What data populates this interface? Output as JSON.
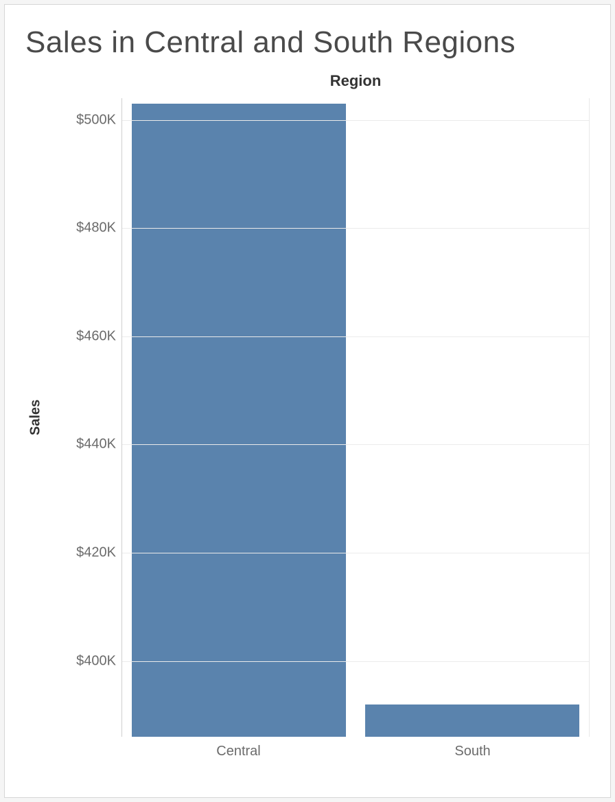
{
  "chart": {
    "type": "bar",
    "title": "Sales in Central and South Regions",
    "title_fontsize": 44,
    "title_color": "#4a4a4a",
    "x_axis_title": "Region",
    "y_axis_title": "Sales",
    "axis_title_fontsize": 22,
    "axis_title_color": "#333333",
    "categories": [
      "Central",
      "South"
    ],
    "values": [
      503000,
      392000
    ],
    "bar_color": "#5a83ad",
    "bar_width_ratio": 0.92,
    "y_domain_min": 386000,
    "y_domain_max": 504000,
    "y_ticks": [
      {
        "value": 400000,
        "label": "$400K"
      },
      {
        "value": 420000,
        "label": "$420K"
      },
      {
        "value": 440000,
        "label": "$440K"
      },
      {
        "value": 460000,
        "label": "$460K"
      },
      {
        "value": 480000,
        "label": "$480K"
      },
      {
        "value": 500000,
        "label": "$500K"
      }
    ],
    "tick_label_fontsize": 20,
    "tick_label_color": "#6b6b6b",
    "grid_color": "#ebebeb",
    "axis_line_color": "#cfcfcf",
    "background_color": "#ffffff",
    "outer_border_color": "#d6d6d6",
    "page_background": "#f5f5f5"
  }
}
